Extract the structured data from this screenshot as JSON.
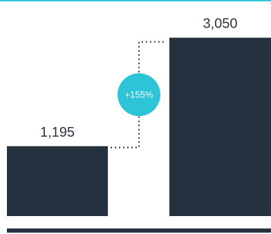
{
  "chart_data": {
    "type": "bar",
    "categories": [
      "",
      ""
    ],
    "values": [
      1195,
      3050
    ],
    "value_labels": [
      "1,195",
      "3,050"
    ],
    "change_label": "+155%",
    "ylim": [
      0,
      3600
    ],
    "grid": false,
    "colors": {
      "bar": "#25313e",
      "top_rule": "#2cc4d6",
      "badge": "#2cc4d6",
      "connector": "#25313e",
      "baseline": "#25313e",
      "text": "#2a3440"
    }
  }
}
